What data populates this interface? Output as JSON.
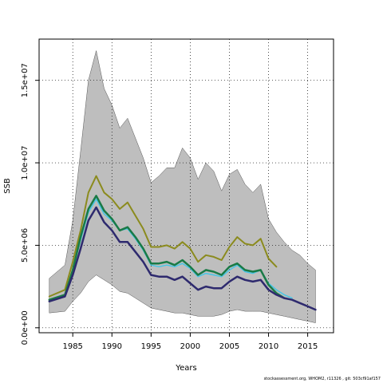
{
  "chart_data": {
    "type": "line",
    "xlabel": "Years",
    "ylabel": "SSB",
    "xlim": [
      1980.7,
      2018.3
    ],
    "ylim": [
      -300000,
      17500000
    ],
    "x_ticks": [
      1985,
      1990,
      1995,
      2000,
      2005,
      2010,
      2015
    ],
    "y_ticks": [
      0,
      5000000,
      10000000,
      15000000
    ],
    "y_tick_labels": [
      "0.0e+00",
      "5.0e+06",
      "1.0e+07",
      "1.5e+07"
    ],
    "grid": true,
    "band": {
      "color": "#bebebe",
      "x": [
        1982,
        1984,
        1985,
        1986,
        1987,
        1988,
        1989,
        1990,
        1991,
        1992,
        1993,
        1994,
        1995,
        1996,
        1997,
        1998,
        1999,
        2000,
        2001,
        2002,
        2003,
        2004,
        2005,
        2006,
        2007,
        2008,
        2009,
        2010,
        2011,
        2012,
        2013,
        2014,
        2015,
        2016
      ],
      "upper": [
        3000000,
        3800000,
        6500000,
        10700000,
        15000000,
        16800000,
        14500000,
        13500000,
        12100000,
        12700000,
        11500000,
        10300000,
        8800000,
        9200000,
        9700000,
        9700000,
        10900000,
        10300000,
        9000000,
        10000000,
        9500000,
        8300000,
        9300000,
        9600000,
        8700000,
        8200000,
        8700000,
        6600000,
        5800000,
        5200000,
        4700000,
        4400000,
        3900000,
        3500000
      ],
      "lower": [
        900000,
        1000000,
        1600000,
        2100000,
        2800000,
        3200000,
        2900000,
        2600000,
        2200000,
        2100000,
        1800000,
        1500000,
        1200000,
        1100000,
        1000000,
        900000,
        900000,
        800000,
        700000,
        700000,
        700000,
        800000,
        1000000,
        1100000,
        1000000,
        1000000,
        1000000,
        900000,
        800000,
        700000,
        600000,
        500000,
        400000,
        300000
      ]
    },
    "series": [
      {
        "color": "#8b8b1e",
        "width": 2,
        "x": [
          1982,
          1984,
          1985,
          1986,
          1987,
          1988,
          1989,
          1990,
          1991,
          1992,
          1993,
          1994,
          1995,
          1996,
          1997,
          1998,
          1999,
          2000,
          2001,
          2002,
          2003,
          2004,
          2005,
          2006,
          2007,
          2008,
          2009,
          2010,
          2011
        ],
        "values": [
          1900000,
          2300000,
          4000000,
          5900000,
          8200000,
          9200000,
          8200000,
          7800000,
          7200000,
          7600000,
          6800000,
          6000000,
          4900000,
          4900000,
          5000000,
          4800000,
          5200000,
          4800000,
          4000000,
          4400000,
          4300000,
          4100000,
          4900000,
          5500000,
          5100000,
          5000000,
          5400000,
          4200000,
          3700000
        ]
      },
      {
        "color": "#46c6e6",
        "width": 1.5,
        "x": [
          1982,
          1984,
          1985,
          1986,
          1987,
          1988,
          1989,
          1990,
          1991,
          1992,
          1993,
          1994,
          1995,
          1996,
          1997,
          1998,
          1999,
          2000,
          2001,
          2002,
          2003,
          2004,
          2005,
          2006,
          2007,
          2008,
          2009,
          2010,
          2011,
          2012,
          2013
        ],
        "values": [
          1700000,
          2000000,
          3500000,
          5300000,
          7000000,
          7800000,
          6900000,
          6500000,
          5900000,
          6000000,
          5400000,
          4700000,
          3800000,
          3700000,
          3800000,
          3700000,
          3900000,
          3600000,
          3100000,
          3300000,
          3200000,
          3100000,
          3500000,
          3800000,
          3400000,
          3300000,
          3500000,
          2700000,
          2300000,
          2000000,
          1800000
        ]
      },
      {
        "color": "#1a7a46",
        "width": 2.5,
        "x": [
          1982,
          1984,
          1985,
          1986,
          1987,
          1988,
          1989,
          1990,
          1991,
          1992,
          1993,
          1994,
          1995,
          1996,
          1997,
          1998,
          1999,
          2000,
          2001,
          2002,
          2003,
          2004,
          2005,
          2006,
          2007,
          2008,
          2009,
          2010,
          2011,
          2012
        ],
        "values": [
          1700000,
          2000000,
          3500000,
          5500000,
          7200000,
          8000000,
          7100000,
          6600000,
          5900000,
          6100000,
          5500000,
          4800000,
          3900000,
          3900000,
          4000000,
          3800000,
          4100000,
          3700000,
          3200000,
          3500000,
          3400000,
          3200000,
          3700000,
          3900000,
          3500000,
          3400000,
          3500000,
          2600000,
          2100000,
          1800000
        ]
      },
      {
        "color": "#2e2a6e",
        "width": 2.5,
        "x": [
          1982,
          1984,
          1985,
          1986,
          1987,
          1988,
          1989,
          1990,
          1991,
          1992,
          1993,
          1994,
          1995,
          1996,
          1997,
          1998,
          1999,
          2000,
          2001,
          2002,
          2003,
          2004,
          2005,
          2006,
          2007,
          2008,
          2009,
          2010,
          2011,
          2012,
          2013,
          2014,
          2015,
          2016
        ],
        "values": [
          1600000,
          1900000,
          3200000,
          4800000,
          6500000,
          7300000,
          6400000,
          5900000,
          5200000,
          5200000,
          4600000,
          4000000,
          3200000,
          3100000,
          3100000,
          2900000,
          3100000,
          2700000,
          2300000,
          2500000,
          2400000,
          2400000,
          2800000,
          3100000,
          2900000,
          2800000,
          2900000,
          2300000,
          2000000,
          1800000,
          1700000,
          1500000,
          1300000,
          1100000
        ]
      }
    ]
  },
  "caption": "stockassessment.org, WHOM2, r11326 , git: 503cf91af157"
}
